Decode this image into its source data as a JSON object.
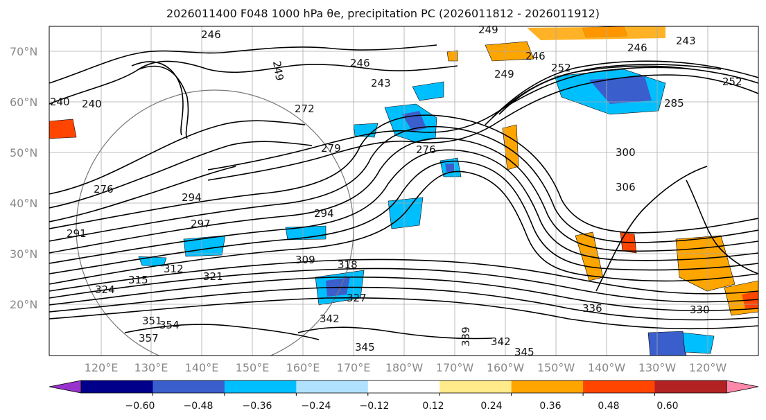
{
  "title": "2026011400 F048 1000 hPa θe, precipitation PC (2026011812 - 2026011912)",
  "map": {
    "latitude_labels": [
      "70°N",
      "60°N",
      "50°N",
      "40°N",
      "30°N",
      "20°N"
    ],
    "longitude_labels": [
      "120°E",
      "130°E",
      "140°E",
      "150°E",
      "160°E",
      "170°E",
      "180°W",
      "170°W",
      "160°W",
      "150°W",
      "140°W",
      "130°W",
      "120°W"
    ],
    "contour_labels": [
      "246",
      "249",
      "246",
      "249",
      "246",
      "243",
      "240",
      "240",
      "272",
      "279",
      "276",
      "252",
      "249",
      "246",
      "243",
      "252",
      "285",
      "300",
      "306",
      "294",
      "309",
      "318",
      "312",
      "315",
      "321",
      "324",
      "327",
      "342",
      "351",
      "354",
      "357",
      "345",
      "339",
      "342",
      "345",
      "336",
      "330",
      "291",
      "276",
      "294",
      "297"
    ]
  },
  "colorbar": {
    "tick_labels": [
      "−0.60",
      "−0.48",
      "−0.36",
      "−0.24",
      "−0.12",
      "0.12",
      "0.24",
      "0.36",
      "0.48",
      "0.60"
    ],
    "colors": [
      "#9932cc",
      "#00008b",
      "#3a5fcd",
      "#00bfff",
      "#b0e2ff",
      "#ffffff",
      "#ffeb8a",
      "#ffa500",
      "#ff4500",
      "#b22222",
      "#ff88aa"
    ]
  }
}
